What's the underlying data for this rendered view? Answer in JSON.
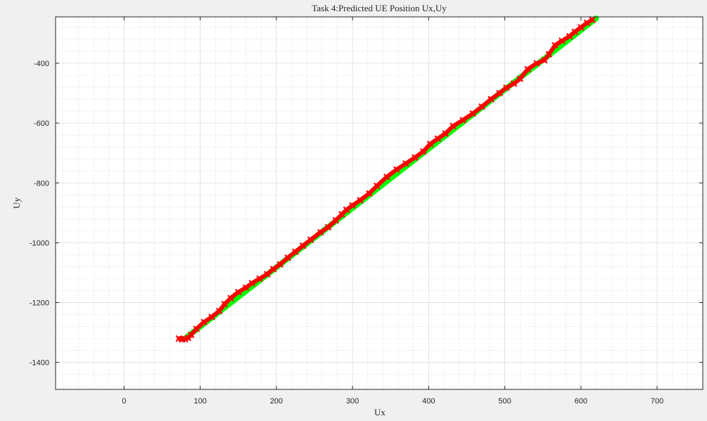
{
  "chart_data": {
    "type": "scatter",
    "title": "Task 4:Predicted UE Position Ux,Uy",
    "xlabel": "Ux",
    "ylabel": "Uy",
    "xlim": [
      -90,
      760
    ],
    "ylim": [
      -1490,
      -245
    ],
    "xticks": [
      0,
      100,
      200,
      300,
      400,
      500,
      600,
      700
    ],
    "yticks": [
      -1400,
      -1200,
      -1000,
      -800,
      -600,
      -400
    ],
    "grid": true,
    "minor_grid": true,
    "series": [
      {
        "marker": "line",
        "color": "#00ff00",
        "x": [
          80,
          620
        ],
        "y": [
          -1320,
          -250
        ]
      },
      {
        "marker": "x",
        "color": "#ff0000",
        "x": [
          72,
          76,
          80,
          84,
          88,
          95,
          105,
          115,
          125,
          132,
          140,
          150,
          160,
          168,
          178,
          188,
          196,
          205,
          215,
          225,
          235,
          245,
          258,
          268,
          278,
          286,
          292,
          300,
          310,
          322,
          332,
          345,
          358,
          370,
          382,
          393,
          402,
          412,
          422,
          432,
          445,
          458,
          470,
          482,
          493,
          502,
          512,
          520,
          530,
          542,
          552,
          558,
          566,
          575,
          585,
          592,
          600,
          608,
          615
        ],
        "y": [
          -1320,
          -1323,
          -1322,
          -1318,
          -1308,
          -1288,
          -1265,
          -1248,
          -1228,
          -1205,
          -1185,
          -1165,
          -1150,
          -1135,
          -1120,
          -1105,
          -1088,
          -1072,
          -1050,
          -1030,
          -1010,
          -990,
          -965,
          -948,
          -925,
          -905,
          -890,
          -875,
          -858,
          -835,
          -810,
          -780,
          -755,
          -735,
          -715,
          -695,
          -670,
          -652,
          -635,
          -610,
          -590,
          -568,
          -545,
          -520,
          -500,
          -482,
          -468,
          -452,
          -420,
          -400,
          -390,
          -370,
          -340,
          -325,
          -310,
          -295,
          -280,
          -265,
          -255
        ]
      }
    ]
  }
}
